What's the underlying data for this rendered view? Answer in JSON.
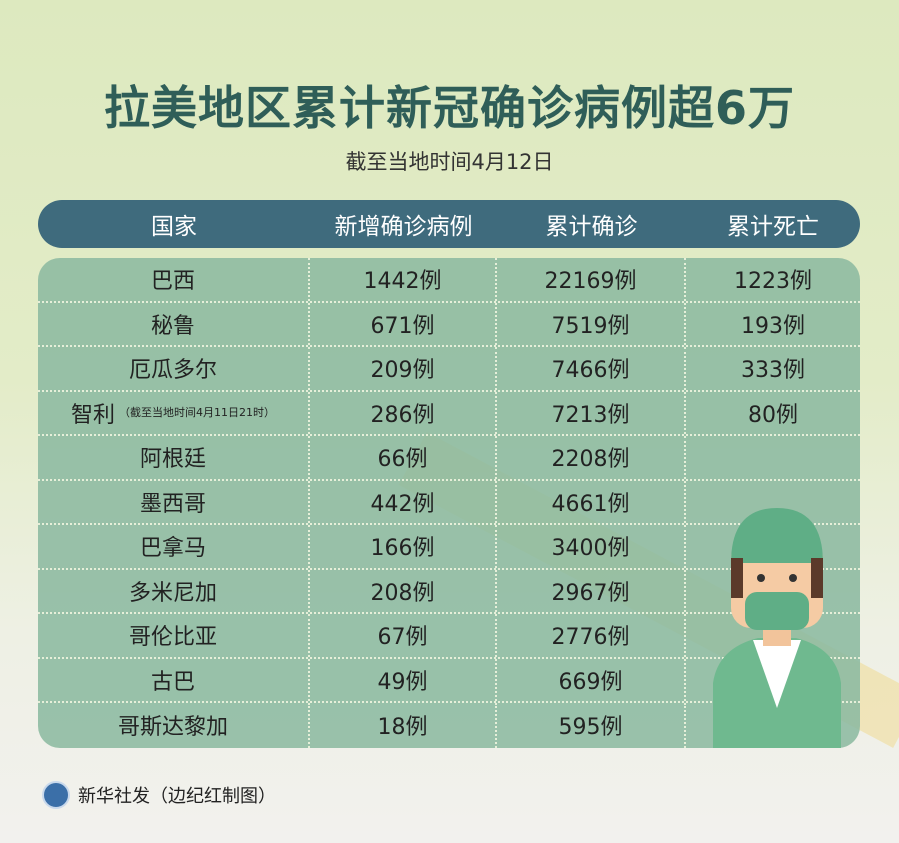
{
  "title": "拉美地区累计新冠确诊病例超6万",
  "subtitle": "截至当地时间4月12日",
  "footer": "新华社发（边纪红制图）",
  "chart_data": {
    "type": "table",
    "columns": [
      "国家",
      "新增确诊病例",
      "累计确诊",
      "累计死亡"
    ],
    "rows": [
      {
        "country": "巴西",
        "note": "",
        "new": "1442例",
        "total": "22169例",
        "deaths": "1223例"
      },
      {
        "country": "秘鲁",
        "note": "",
        "new": "671例",
        "total": "7519例",
        "deaths": "193例"
      },
      {
        "country": "厄瓜多尔",
        "note": "",
        "new": "209例",
        "total": "7466例",
        "deaths": "333例"
      },
      {
        "country": "智利",
        "note": "（截至当地时间4月11日21时）",
        "new": "286例",
        "total": "7213例",
        "deaths": "80例"
      },
      {
        "country": "阿根廷",
        "note": "",
        "new": "66例",
        "total": "2208例",
        "deaths": ""
      },
      {
        "country": "墨西哥",
        "note": "",
        "new": "442例",
        "total": "4661例",
        "deaths": ""
      },
      {
        "country": "巴拿马",
        "note": "",
        "new": "166例",
        "total": "3400例",
        "deaths": ""
      },
      {
        "country": "多米尼加",
        "note": "",
        "new": "208例",
        "total": "2967例",
        "deaths": ""
      },
      {
        "country": "哥伦比亚",
        "note": "",
        "new": "67例",
        "total": "2776例",
        "deaths": ""
      },
      {
        "country": "古巴",
        "note": "",
        "new": "49例",
        "total": "669例",
        "deaths": ""
      },
      {
        "country": "哥斯达黎加",
        "note": "",
        "new": "18例",
        "total": "595例",
        "deaths": ""
      }
    ]
  },
  "colors": {
    "title": "#2f5e58",
    "header": "#3f6b7d",
    "table": "#8cb9a0"
  }
}
